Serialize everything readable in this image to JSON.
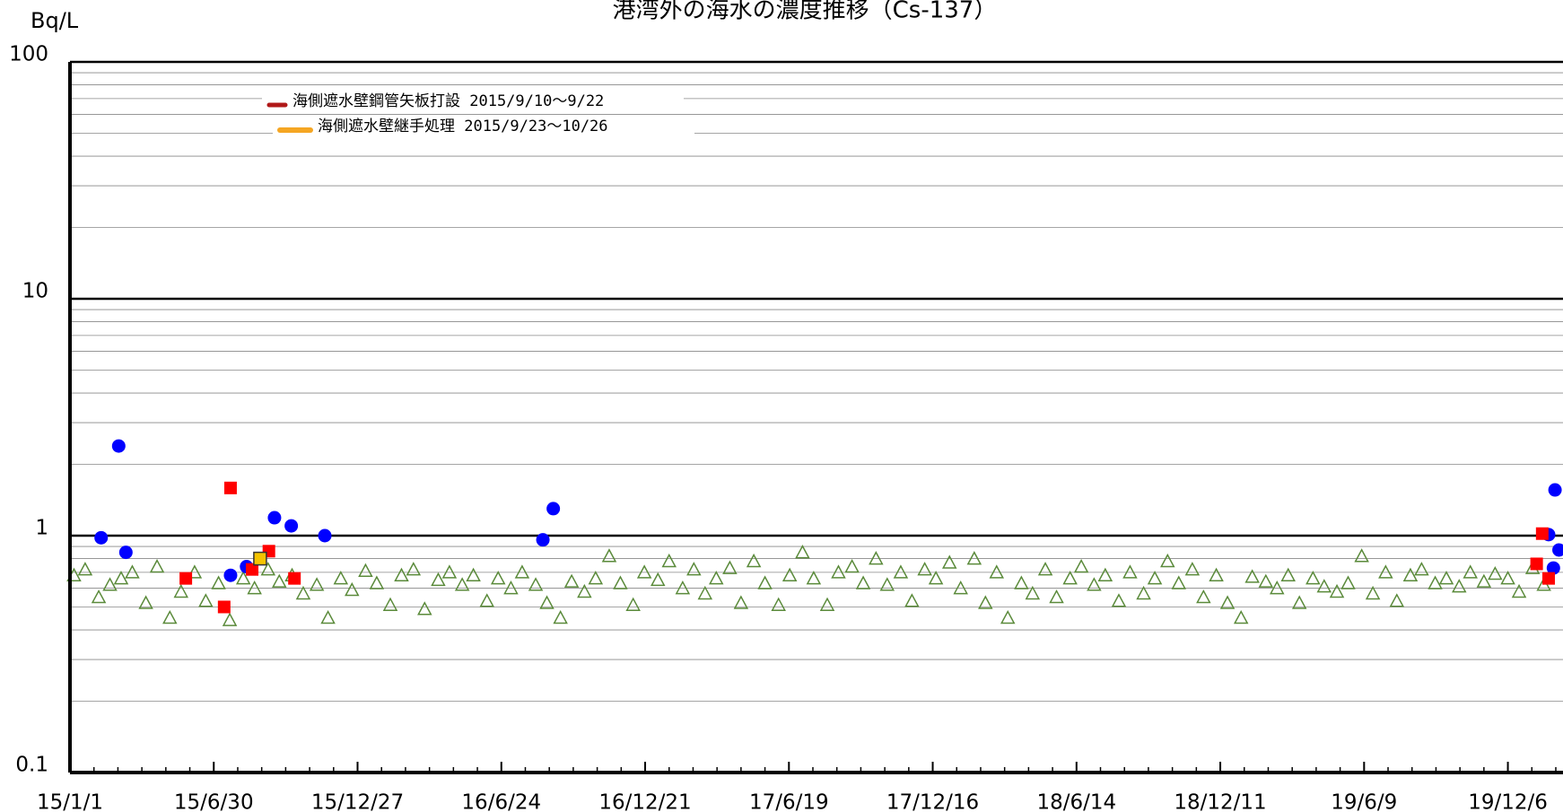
{
  "chart_data": {
    "type": "scatter",
    "title": "港湾外の海水の濃度推移（Cs-137）",
    "y_label": "Bq/L",
    "log_y": true,
    "grid": true,
    "ylim": [
      0.1,
      100
    ],
    "yticks": [
      0.1,
      1,
      10,
      100
    ],
    "xlim": [
      "15/1/1",
      "20/2/13"
    ],
    "xticks": [
      "15/1/1",
      "15/6/30",
      "15/12/27",
      "16/6/24",
      "16/12/21",
      "17/6/19",
      "17/12/16",
      "18/6/14",
      "18/12/11",
      "19/6/9",
      "19/12/6"
    ],
    "legend": [
      {
        "label": "海側遮水壁鋼管矢板打設 2015/9/10～9/22",
        "color": "#b01818"
      },
      {
        "label": "海側遮水壁継手処理 2015/9/23～10/26",
        "color": "#f5a623"
      }
    ],
    "series": [
      {
        "marker": "triangle",
        "color": "#5a8a3a",
        "x": [
          "15/1/6",
          "15/1/20",
          "15/2/6",
          "15/2/20",
          "15/3/6",
          "15/3/20",
          "15/4/6",
          "15/4/20",
          "15/5/6",
          "15/5/20",
          "15/6/6",
          "15/6/20",
          "15/7/6",
          "15/7/20",
          "15/8/6",
          "15/8/20",
          "15/9/6",
          "15/9/20",
          "15/10/6",
          "15/10/20",
          "15/11/6",
          "15/11/20",
          "15/12/6",
          "15/12/20",
          "16/1/6",
          "16/1/20",
          "16/2/6",
          "16/2/20",
          "16/3/6",
          "16/3/20",
          "16/4/6",
          "16/4/20",
          "16/5/6",
          "16/5/20",
          "16/6/6",
          "16/6/20",
          "16/7/6",
          "16/7/20",
          "16/8/6",
          "16/8/20",
          "16/9/6",
          "16/9/20",
          "16/10/6",
          "16/10/20",
          "16/11/6",
          "16/11/20",
          "16/12/6",
          "16/12/20",
          "17/1/6",
          "17/1/20",
          "17/2/6",
          "17/2/20",
          "17/3/6",
          "17/3/20",
          "17/4/6",
          "17/4/20",
          "17/5/6",
          "17/5/20",
          "17/6/6",
          "17/6/20",
          "17/7/6",
          "17/7/20",
          "17/8/6",
          "17/8/20",
          "17/9/6",
          "17/9/20",
          "17/10/6",
          "17/10/20",
          "17/11/6",
          "17/11/20",
          "17/12/6",
          "17/12/20",
          "18/1/6",
          "18/1/20",
          "18/2/6",
          "18/2/20",
          "18/3/6",
          "18/3/20",
          "18/4/6",
          "18/4/20",
          "18/5/6",
          "18/5/20",
          "18/6/6",
          "18/6/20",
          "18/7/6",
          "18/7/20",
          "18/8/6",
          "18/8/20",
          "18/9/6",
          "18/9/20",
          "18/10/6",
          "18/10/20",
          "18/11/6",
          "18/11/20",
          "18/12/6",
          "18/12/20",
          "19/1/6",
          "19/1/20",
          "19/2/6",
          "19/2/20",
          "19/3/6",
          "19/3/20",
          "19/4/6",
          "19/4/20",
          "19/5/6",
          "19/5/20",
          "19/6/6",
          "19/6/20",
          "19/7/6",
          "19/7/20",
          "19/8/6",
          "19/8/20",
          "19/9/6",
          "19/9/20",
          "19/10/6",
          "19/10/20",
          "19/11/6",
          "19/11/20",
          "19/12/6",
          "19/12/20",
          "20/1/6",
          "20/1/20"
        ],
        "values": [
          0.68,
          0.72,
          0.55,
          0.62,
          0.66,
          0.7,
          0.52,
          0.74,
          0.45,
          0.58,
          0.7,
          0.53,
          0.63,
          0.44,
          0.66,
          0.6,
          0.72,
          0.64,
          0.68,
          0.57,
          0.62,
          0.45,
          0.66,
          0.59,
          0.71,
          0.63,
          0.51,
          0.68,
          0.72,
          0.49,
          0.65,
          0.7,
          0.62,
          0.68,
          0.53,
          0.66,
          0.6,
          0.7,
          0.62,
          0.52,
          0.45,
          0.64,
          0.58,
          0.66,
          0.82,
          0.63,
          0.51,
          0.7,
          0.65,
          0.78,
          0.6,
          0.72,
          0.57,
          0.66,
          0.73,
          0.52,
          0.78,
          0.63,
          0.51,
          0.68,
          0.85,
          0.66,
          0.51,
          0.7,
          0.74,
          0.63,
          0.8,
          0.62,
          0.7,
          0.53,
          0.72,
          0.66,
          0.77,
          0.6,
          0.8,
          0.52,
          0.7,
          0.45,
          0.63,
          0.57,
          0.72,
          0.55,
          0.66,
          0.74,
          0.62,
          0.68,
          0.53,
          0.7,
          0.57,
          0.66,
          0.78,
          0.63,
          0.72,
          0.55,
          0.68,
          0.52,
          0.45,
          0.67,
          0.64,
          0.6,
          0.68,
          0.52,
          0.66,
          0.61,
          0.58,
          0.63,
          0.82,
          0.57,
          0.7,
          0.53,
          0.68,
          0.72,
          0.63,
          0.66,
          0.61,
          0.7,
          0.64,
          0.69,
          0.66,
          0.58,
          0.73,
          0.62
        ]
      },
      {
        "marker": "circle",
        "color": "#0000ff",
        "x": [
          "15/2/9",
          "15/3/3",
          "15/3/12",
          "15/7/21",
          "15/8/10",
          "15/9/14",
          "15/10/5",
          "15/11/16",
          "16/8/15",
          "16/8/28",
          "20/1/26",
          "20/2/3",
          "20/2/1",
          "20/2/8"
        ],
        "values": [
          0.98,
          2.39,
          0.85,
          0.68,
          0.74,
          1.19,
          1.1,
          1.0,
          0.96,
          1.3,
          1.01,
          1.56,
          0.73,
          0.87
        ]
      },
      {
        "marker": "square",
        "color": "#ff0000",
        "x": [
          "15/5/26",
          "15/7/13",
          "15/7/21",
          "15/8/17",
          "15/9/7",
          "15/10/9",
          "20/1/11",
          "20/1/18",
          "20/1/26"
        ],
        "values": [
          0.66,
          0.5,
          1.59,
          0.72,
          0.86,
          0.66,
          0.76,
          1.02,
          0.66
        ]
      },
      {
        "marker": "square",
        "color": "#f5c400",
        "x": [
          "15/8/27"
        ],
        "values": [
          0.8
        ]
      }
    ]
  }
}
